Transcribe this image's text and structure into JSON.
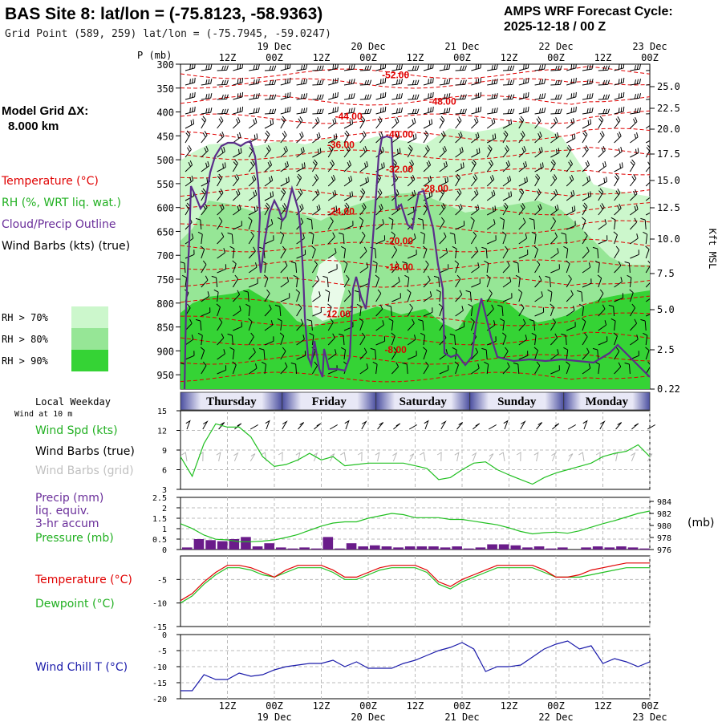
{
  "header": {
    "title": "BAS Site 8:  lat/lon = (-75.8123, -58.9363)",
    "grid_point": "Grid Point (589, 259) lat/lon = (-75.7945, -59.0247)",
    "cycle_label": "AMPS WRF Forecast Cycle:",
    "cycle_value": "2025-12-18 / 00  Z"
  },
  "model": {
    "grid_label": "Model Grid ΔX:",
    "grid_value": "8.000 km"
  },
  "legend": {
    "temperature": "Temperature (°C)",
    "rh": "RH (%, WRT liq. wat.)",
    "cloud": "Cloud/Precip Outline",
    "wind": "Wind Barbs (kts) (true)",
    "rh_levels": [
      {
        "label": "RH > 70%",
        "color": "#ccf7cc"
      },
      {
        "label": "RH > 80%",
        "color": "#96e696"
      },
      {
        "label": "RH > 90%",
        "color": "#35d335"
      }
    ]
  },
  "colors": {
    "temperature": "#e00000",
    "cloud": "#5a2e8a",
    "rh": "#22c022",
    "pressure": "#22c022",
    "dewpoint": "#22c022",
    "windchill": "#1a1aaa",
    "precip": "#6a1c8a",
    "wind_spd": "#22c022"
  },
  "time_axis": {
    "top_dates": [
      "19 Dec",
      "20 Dec",
      "21 Dec",
      "22 Dec",
      "23 Dec"
    ],
    "tick_labels": [
      "12Z",
      "00Z",
      "12Z",
      "00Z",
      "12Z",
      "00Z",
      "12Z",
      "00Z",
      "12Z",
      "00Z"
    ],
    "p_label": "P (mb)"
  },
  "days": {
    "title": "Local Weekday",
    "wind_note": "Wind at 10 m",
    "labels": [
      "Thursday",
      "Friday",
      "Saturday",
      "Sunday",
      "Monday"
    ]
  },
  "panels": {
    "wind_spd": "Wind Spd (kts)",
    "wind_true": "Wind Barbs (true)",
    "wind_grid": "Wind Barbs (grid)",
    "precip_lines": [
      "Precip (mm)",
      "liq. equiv.",
      "3-hr accum"
    ],
    "pressure": "Pressure (mb)",
    "pressure_unit": "(mb)",
    "temperature": "Temperature (°C)",
    "dewpoint": "Dewpoint (°C)",
    "windchill": "Wind Chill T (°C)"
  },
  "chart_data": [
    {
      "type": "heatmap",
      "name": "cross-section",
      "x_hours": [
        0,
        120
      ],
      "pressure_ticks": [
        300,
        350,
        400,
        450,
        500,
        550,
        600,
        650,
        700,
        750,
        800,
        850,
        900,
        950
      ],
      "kft_ticks": [
        "25.0",
        "22.5",
        "20.0",
        "17.5",
        "15.0",
        "12.5",
        "10.0",
        "7.5",
        "5.0",
        "2.5",
        "0.22"
      ],
      "kft_label": "Kft MSL",
      "isotherm_labels": [
        {
          "text": "-52.00",
          "hour": 55,
          "p": 323
        },
        {
          "text": "-48.00",
          "hour": 67,
          "p": 378
        },
        {
          "text": "-44.00",
          "hour": 43,
          "p": 409
        },
        {
          "text": "-40.00",
          "hour": 56,
          "p": 447
        },
        {
          "text": "-36.00",
          "hour": 41,
          "p": 469
        },
        {
          "text": "-32.00",
          "hour": 56,
          "p": 520
        },
        {
          "text": "-28.00",
          "hour": 65,
          "p": 560
        },
        {
          "text": "-24.00",
          "hour": 41,
          "p": 608
        },
        {
          "text": "-20.00",
          "hour": 56,
          "p": 670
        },
        {
          "text": "-16.00",
          "hour": 56,
          "p": 725
        },
        {
          "text": "-12.00",
          "hour": 40,
          "p": 823
        },
        {
          "text": "-8.00",
          "hour": 55,
          "p": 898
        }
      ]
    },
    {
      "type": "line",
      "name": "Wind Spd (kts)",
      "yticks": [
        3,
        6,
        9,
        12,
        15
      ],
      "ylim": [
        3,
        15
      ],
      "x_hours": [
        0,
        3,
        6,
        9,
        12,
        15,
        18,
        21,
        24,
        27,
        30,
        33,
        36,
        39,
        42,
        45,
        48,
        51,
        54,
        57,
        60,
        63,
        66,
        69,
        72,
        75,
        78,
        81,
        84,
        87,
        90,
        93,
        96,
        99,
        102,
        105,
        108,
        111,
        114,
        117,
        120
      ],
      "values": [
        8,
        5,
        10,
        13,
        12.5,
        12.5,
        11,
        8,
        6.5,
        6.8,
        7.5,
        8.5,
        7.5,
        8,
        6.6,
        6.8,
        7,
        7,
        7,
        7,
        6.6,
        6.2,
        4.5,
        4.8,
        6,
        7,
        7.2,
        6,
        5.2,
        4.5,
        3.8,
        4.8,
        5.5,
        6,
        6.5,
        7,
        8,
        8.5,
        8.8,
        9.8,
        8
      ]
    },
    {
      "type": "bar",
      "name": "Precip (mm)",
      "yticks": [
        0,
        0.5,
        1.0,
        1.5,
        2.0,
        2.5
      ],
      "ylim": [
        0,
        2.5
      ],
      "x_hours": [
        3,
        6,
        9,
        12,
        15,
        18,
        21,
        24,
        27,
        30,
        33,
        36,
        39,
        42,
        45,
        48,
        51,
        54,
        57,
        60,
        63,
        66,
        69,
        72,
        75,
        78,
        81,
        84,
        87,
        90,
        93,
        96,
        99,
        102,
        105,
        108,
        111,
        114,
        117,
        120
      ],
      "values": [
        0.1,
        0.5,
        0.45,
        0.4,
        0.5,
        0.6,
        0.15,
        0.3,
        0.1,
        0.05,
        0.1,
        0.05,
        0.6,
        0.05,
        0.3,
        0.15,
        0.2,
        0.15,
        0.1,
        0.15,
        0.15,
        0.15,
        0.1,
        0.15,
        0.05,
        0.1,
        0.25,
        0.25,
        0.2,
        0.1,
        0.15,
        0.05,
        0.1,
        0.0,
        0.1,
        0.15,
        0.1,
        0.15,
        0.1,
        0.05
      ]
    },
    {
      "type": "line",
      "name": "Pressure (mb)",
      "yticks": [
        976,
        978,
        980,
        982,
        984
      ],
      "ylim": [
        976,
        984
      ],
      "x_hours": [
        0,
        3,
        6,
        9,
        12,
        15,
        18,
        21,
        24,
        27,
        30,
        33,
        36,
        39,
        42,
        45,
        48,
        51,
        54,
        57,
        60,
        63,
        66,
        69,
        72,
        75,
        78,
        81,
        84,
        87,
        90,
        93,
        96,
        99,
        102,
        105,
        108,
        111,
        114,
        117,
        120
      ],
      "values": [
        980.3,
        979.5,
        978.4,
        977.7,
        977.6,
        977.3,
        977.3,
        977.4,
        977.6,
        978,
        978.5,
        979.2,
        979.9,
        980.4,
        980.6,
        980.6,
        981.2,
        981.6,
        982,
        981.8,
        981.3,
        981.3,
        981.3,
        981,
        981,
        980.7,
        980.4,
        980.1,
        979.6,
        979,
        978.6,
        978.8,
        978.9,
        978.7,
        979.1,
        979.7,
        980.3,
        980.8,
        981.4,
        982,
        982.4
      ]
    },
    {
      "type": "line",
      "name": "Temperature / Dewpoint (°C)",
      "yticks": [
        -15,
        -10,
        -5
      ],
      "ylim": [
        -15,
        0
      ],
      "x_hours": [
        0,
        3,
        6,
        9,
        12,
        15,
        18,
        21,
        24,
        27,
        30,
        33,
        36,
        39,
        42,
        45,
        48,
        51,
        54,
        57,
        60,
        63,
        66,
        69,
        72,
        75,
        78,
        81,
        84,
        87,
        90,
        93,
        96,
        99,
        102,
        105,
        108,
        111,
        114,
        117,
        120
      ],
      "series": [
        {
          "name": "Temperature (°C)",
          "values": [
            -9.5,
            -8,
            -5.5,
            -3.5,
            -2,
            -2,
            -2.5,
            -3.5,
            -4.5,
            -3,
            -2,
            -2,
            -2,
            -3,
            -4.5,
            -4.5,
            -3.5,
            -2.5,
            -2,
            -2,
            -2,
            -3,
            -5.5,
            -6.5,
            -5,
            -4,
            -3,
            -2,
            -2,
            -2,
            -2,
            -3,
            -4.5,
            -4.5,
            -4,
            -3,
            -2.5,
            -2,
            -1.5,
            -1.5,
            -1.5
          ]
        },
        {
          "name": "Dewpoint (°C)",
          "values": [
            -10,
            -8.5,
            -6,
            -4,
            -2.5,
            -2.5,
            -3,
            -4,
            -4.5,
            -3.5,
            -2.5,
            -2.5,
            -2.5,
            -3.5,
            -5,
            -5,
            -4,
            -3,
            -2.5,
            -2.5,
            -2.5,
            -3.5,
            -6,
            -7,
            -5.5,
            -4.5,
            -3.5,
            -2.5,
            -2.5,
            -2.5,
            -2.5,
            -3.5,
            -4.5,
            -4.5,
            -4.5,
            -4,
            -3.5,
            -3,
            -2.5,
            -2.5,
            -2.5
          ]
        }
      ]
    },
    {
      "type": "line",
      "name": "Wind Chill T (°C)",
      "yticks": [
        -20,
        -15,
        -10,
        -5,
        0
      ],
      "ylim": [
        -20,
        0
      ],
      "x_hours": [
        0,
        3,
        6,
        9,
        12,
        15,
        18,
        21,
        24,
        27,
        30,
        33,
        36,
        39,
        42,
        45,
        48,
        51,
        54,
        57,
        60,
        63,
        66,
        69,
        72,
        75,
        78,
        81,
        84,
        87,
        90,
        93,
        96,
        99,
        102,
        105,
        108,
        111,
        114,
        117,
        120
      ],
      "values": [
        -17.5,
        -17.5,
        -12.5,
        -14,
        -14,
        -12,
        -13,
        -12.5,
        -11,
        -10,
        -9.5,
        -9,
        -9,
        -8,
        -10,
        -8.5,
        -10.5,
        -10.5,
        -10.5,
        -9,
        -8,
        -6.5,
        -5,
        -4,
        -2.5,
        -4.5,
        -11.5,
        -10,
        -10,
        -9.5,
        -7,
        -4.5,
        -3,
        -2,
        -4.5,
        -3.5,
        -9,
        -7.5,
        -8.5,
        -10,
        -8.5
      ]
    }
  ]
}
